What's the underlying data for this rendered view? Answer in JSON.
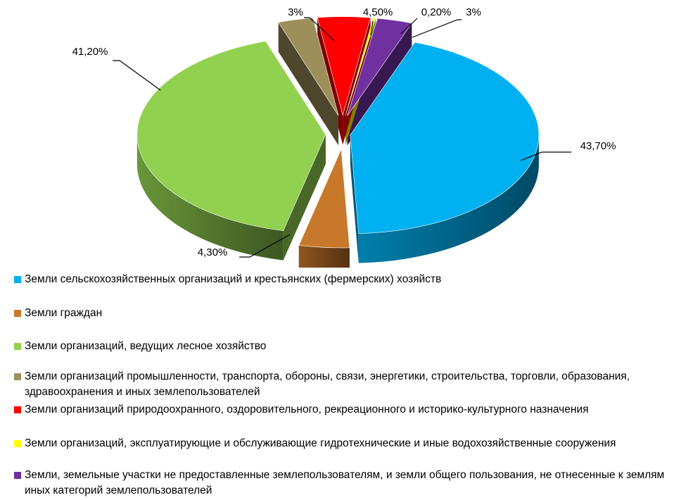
{
  "chart_data": {
    "type": "pie",
    "title": "",
    "categories": [
      "Земли сельскохозяйственных организаций и крестьянских (фермерских) хозяйств",
      "Земли граждан",
      "Земли организаций, ведущих лесное хозяйство",
      "Земли организаций промышленности, транспорта, обороны, связи, энергетики, строительства, торговли, образования, здравоохранения и иных землепользователей",
      "Земли организаций природоохранного, оздоровительного, рекреационного и историко-культурного назначения",
      "Земли организаций, эксплуатирующие и обслуживающие гидротехнические и иные водохозяйственные сооружения",
      "Земли, земельные участки не предоставленные землепользователям, и земли общего пользования, не отнесенные к землям иных категорий землепользователей"
    ],
    "values": [
      43.7,
      4.3,
      41.2,
      3,
      4.5,
      0.2,
      3
    ],
    "labels": [
      "43,70%",
      "4,30%",
      "41,20%",
      "3%",
      "4,50%",
      "0,20%",
      "3%"
    ],
    "colors": [
      "#00B0F0",
      "#C8782A",
      "#92D050",
      "#9E8E5A",
      "#FF0000",
      "#FFFF00",
      "#7030A0"
    ],
    "exploded": true,
    "three_d": true,
    "legend_position": "bottom"
  }
}
